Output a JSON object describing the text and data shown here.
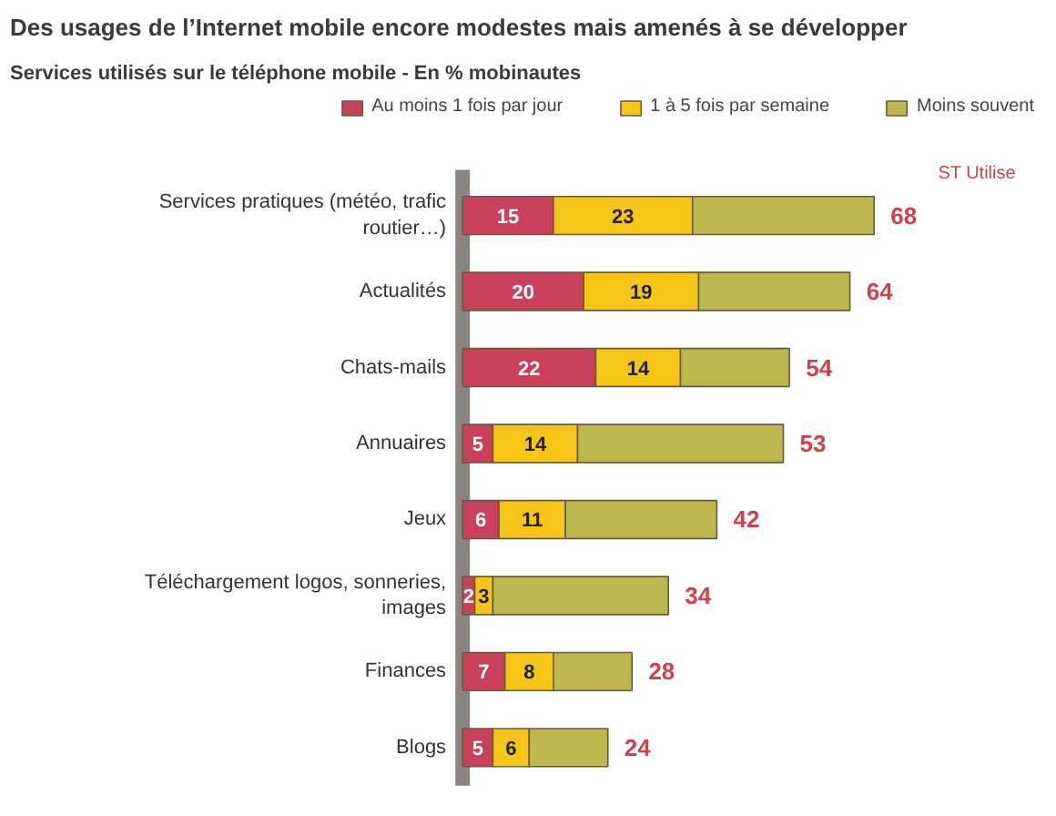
{
  "chart_data": {
    "type": "bar",
    "orientation": "horizontal",
    "stacked": true,
    "title": "Des usages de l’Internet mobile encore modestes mais amenés à se développer",
    "subtitle": "Services utilisés sur le téléphone mobile - En % mobinautes",
    "categories": [
      "Services pratiques (météo, trafic routier…)",
      "Actualités",
      "Chats-mails",
      "Annuaires",
      "Jeux",
      "Téléchargement logos, sonneries, images",
      "Finances",
      "Blogs"
    ],
    "series": [
      {
        "name": "Au moins 1 fois par jour",
        "color": "#c8405a",
        "values": [
          15,
          20,
          22,
          5,
          6,
          2,
          7,
          5
        ],
        "value_labels": [
          "15",
          "20",
          "22",
          "5",
          "6",
          "2",
          "7",
          "5"
        ]
      },
      {
        "name": "1 à 5 fois par semaine",
        "color": "#f5c518",
        "values": [
          23,
          19,
          14,
          14,
          11,
          3,
          8,
          6
        ],
        "value_labels": [
          "23",
          "19",
          "14",
          "14",
          "11",
          "3",
          "8",
          "6"
        ]
      },
      {
        "name": "Moins souvent",
        "color": "#bdb84e",
        "values": [
          30,
          25,
          18,
          34,
          25,
          29,
          13,
          13
        ]
      }
    ],
    "totals": [
      "68",
      "64",
      "54",
      "53",
      "42",
      "34",
      "28",
      "24"
    ],
    "annotations": [
      "ST Utilise"
    ],
    "legend": "top",
    "grid": false
  }
}
